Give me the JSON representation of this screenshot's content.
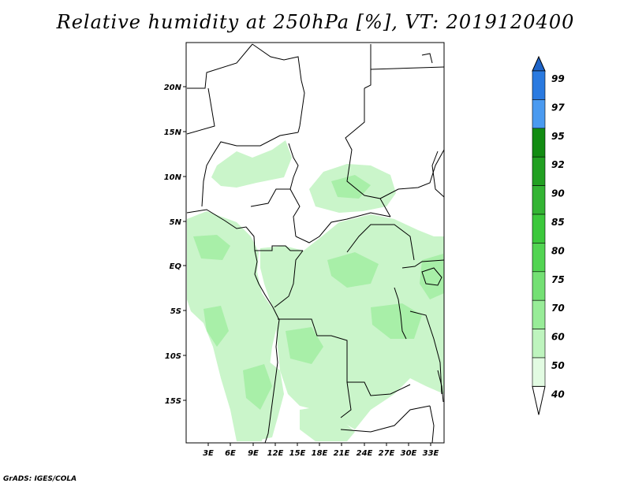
{
  "title": "Relative humidity at 250hPa [%], VT: 2019120400",
  "footer": "GrADS: IGES/COLA",
  "map": {
    "lat_labels": [
      "20N",
      "15N",
      "10N",
      "5N",
      "EQ",
      "5S",
      "10S",
      "15S"
    ],
    "lon_labels": [
      "3E",
      "6E",
      "9E",
      "12E",
      "15E",
      "18E",
      "21E",
      "24E",
      "27E",
      "30E",
      "33E"
    ]
  },
  "colorbar": {
    "labels": [
      "99",
      "97",
      "95",
      "92",
      "90",
      "85",
      "80",
      "75",
      "70",
      "60",
      "50",
      "40"
    ],
    "colors": [
      "#1e64c8",
      "#2a7ae0",
      "#4a9af0",
      "#128c12",
      "#22a022",
      "#34b434",
      "#3cc83c",
      "#52d452",
      "#74e074",
      "#98ec98",
      "#bef4be",
      "#e2fbe2"
    ]
  },
  "chart_data": {
    "type": "heatmap",
    "title": "Relative humidity at 250hPa [%], VT: 2019120400",
    "lat_ticks": [
      "20N",
      "15N",
      "10N",
      "5N",
      "EQ",
      "5S",
      "10S",
      "15S"
    ],
    "lon_ticks": [
      "3E",
      "6E",
      "9E",
      "12E",
      "15E",
      "18E",
      "21E",
      "24E",
      "27E",
      "30E",
      "33E"
    ],
    "lat_range": [
      -20,
      25
    ],
    "lon_range": [
      0,
      35
    ],
    "levels": [
      40,
      50,
      60,
      70,
      75,
      80,
      85,
      90,
      92,
      95,
      97,
      99
    ],
    "colors": {
      "40": "#e2fbe2",
      "50": "#bef4be",
      "60": "#98ec98",
      "70": "#74e074",
      "75": "#52d452",
      "80": "#3cc83c",
      "85": "#34b434",
      "90": "#22a022",
      "92": "#128c12",
      "95": "#4a9af0",
      "97": "#2a7ae0",
      "99": "#1e64c8"
    },
    "dominant_range": [
      40,
      60
    ]
  }
}
